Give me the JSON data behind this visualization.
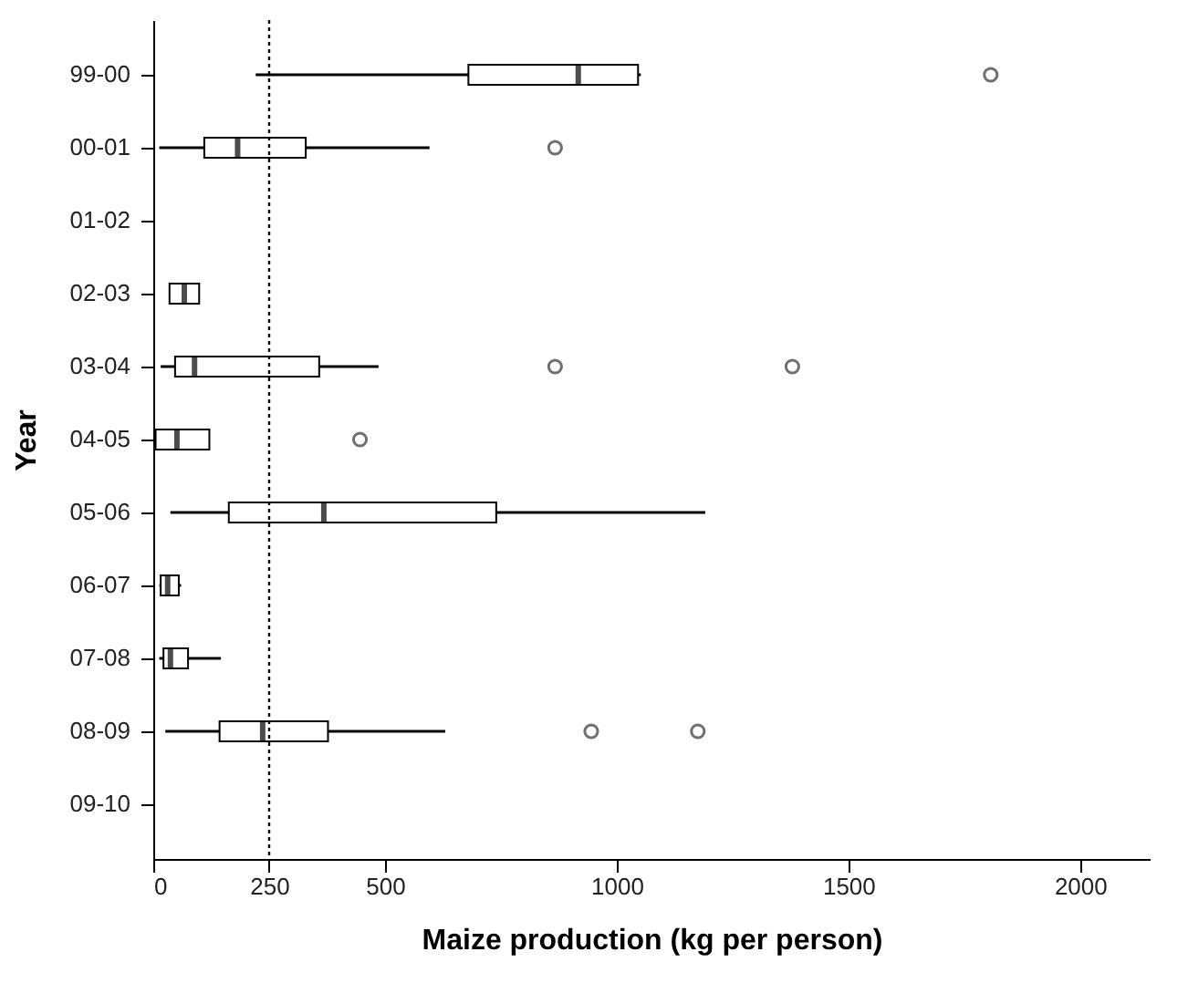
{
  "chart_data": {
    "type": "box",
    "orientation": "horizontal",
    "xlabel": "Maize production (kg per person)",
    "ylabel": "Year",
    "categories": [
      "99-00",
      "00-01",
      "01-02",
      "02-03",
      "03-04",
      "04-05",
      "05-06",
      "06-07",
      "07-08",
      "08-09",
      "09-10"
    ],
    "boxes": [
      {
        "low": 221,
        "q1": 680,
        "median": 917,
        "q3": 1046,
        "high": 1052,
        "outliers": [
          1807
        ]
      },
      {
        "low": 13,
        "q1": 110,
        "median": 182,
        "q3": 329,
        "high": 596,
        "outliers": [
          867
        ]
      },
      null,
      {
        "low": 35,
        "q1": 35,
        "median": 67,
        "q3": 99,
        "high": 99
      },
      {
        "low": 16,
        "q1": 47,
        "median": 89,
        "q3": 358,
        "high": 486,
        "outliers": [
          867,
          1379
        ]
      },
      {
        "low": 0,
        "q1": 5,
        "median": 51,
        "q3": 121,
        "high": 121,
        "outliers": [
          446
        ]
      },
      {
        "low": 37,
        "q1": 163,
        "median": 368,
        "q3": 740,
        "high": 1191
      },
      {
        "low": 13,
        "q1": 16,
        "median": 31,
        "q3": 55,
        "high": 60
      },
      {
        "low": 13,
        "q1": 22,
        "median": 37,
        "q3": 75,
        "high": 146
      },
      {
        "low": 26,
        "q1": 143,
        "median": 236,
        "q3": 377,
        "high": 630,
        "outliers": [
          945,
          1175
        ]
      },
      null
    ],
    "xlim": [
      0,
      2150
    ],
    "xticks": [
      0,
      250,
      500,
      1000,
      1500,
      2000
    ],
    "ref_lines": [
      {
        "axis": "x",
        "value": 250,
        "line_style": "dotted"
      }
    ],
    "grid": false
  }
}
